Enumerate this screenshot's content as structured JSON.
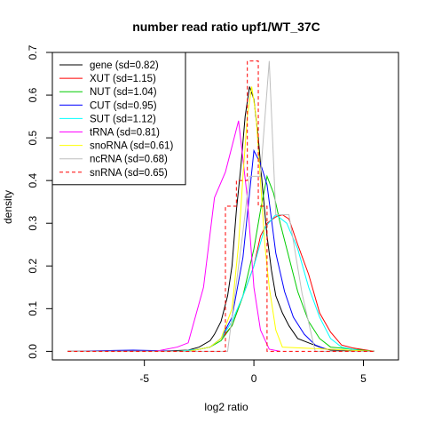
{
  "chart_data": {
    "type": "line",
    "title": "number read ratio upf1/WT_37C",
    "xlabel": "log2 ratio",
    "ylabel": "density",
    "xlim": [
      -9.2,
      6.6
    ],
    "ylim": [
      -0.02,
      0.7
    ],
    "xticks": [
      -5,
      0,
      5
    ],
    "yticks": [
      0.0,
      0.1,
      0.2,
      0.3,
      0.4,
      0.5,
      0.6,
      0.7
    ],
    "grid": false,
    "legend_position": "top-left",
    "series": [
      {
        "name": "gene (sd=0.82)",
        "color": "#000000",
        "dash": false,
        "x": [
          -8.5,
          -6.0,
          -4.5,
          -3.0,
          -2.5,
          -2.0,
          -1.8,
          -1.5,
          -1.2,
          -1.0,
          -0.8,
          -0.6,
          -0.4,
          -0.2,
          0.0,
          0.2,
          0.4,
          0.6,
          0.8,
          1.0,
          1.3,
          1.6,
          2.0,
          2.5,
          3.0,
          3.5,
          5.5
        ],
        "y": [
          0.0,
          0.0,
          0.0,
          0.003,
          0.01,
          0.025,
          0.04,
          0.07,
          0.13,
          0.2,
          0.33,
          0.43,
          0.55,
          0.62,
          0.59,
          0.5,
          0.38,
          0.27,
          0.19,
          0.13,
          0.09,
          0.06,
          0.03,
          0.02,
          0.01,
          0.003,
          0.0
        ]
      },
      {
        "name": "XUT (sd=1.15)",
        "color": "#ff0000",
        "dash": false,
        "x": [
          -8.5,
          -3.5,
          -2.5,
          -2.0,
          -1.5,
          -1.0,
          -0.5,
          0.0,
          0.3,
          0.6,
          1.0,
          1.3,
          1.6,
          2.0,
          2.5,
          3.0,
          3.5,
          4.0,
          4.5,
          5.5
        ],
        "y": [
          0.0,
          0.0,
          0.005,
          0.01,
          0.03,
          0.06,
          0.13,
          0.2,
          0.27,
          0.3,
          0.315,
          0.32,
          0.31,
          0.25,
          0.18,
          0.09,
          0.045,
          0.015,
          0.008,
          0.0
        ]
      },
      {
        "name": "NUT (sd=1.04)",
        "color": "#00cc00",
        "dash": false,
        "x": [
          -8.5,
          -3.0,
          -2.0,
          -1.5,
          -1.0,
          -0.5,
          0.0,
          0.3,
          0.6,
          0.9,
          1.2,
          1.5,
          2.0,
          2.5,
          3.0,
          3.5,
          5.5
        ],
        "y": [
          0.0,
          0.0,
          0.01,
          0.025,
          0.06,
          0.13,
          0.24,
          0.33,
          0.41,
          0.37,
          0.3,
          0.24,
          0.14,
          0.07,
          0.03,
          0.01,
          0.0
        ]
      },
      {
        "name": "CUT (sd=0.95)",
        "color": "#0000ff",
        "dash": false,
        "x": [
          -8.5,
          -5.5,
          -3.0,
          -2.0,
          -1.5,
          -1.0,
          -0.5,
          -0.2,
          0.0,
          0.3,
          0.6,
          1.0,
          1.4,
          1.8,
          2.3,
          2.8,
          3.3,
          5.5
        ],
        "y": [
          0.0,
          0.003,
          0.0,
          0.01,
          0.03,
          0.08,
          0.22,
          0.37,
          0.47,
          0.44,
          0.39,
          0.23,
          0.14,
          0.08,
          0.04,
          0.015,
          0.005,
          0.0
        ]
      },
      {
        "name": "SUT (sd=1.12)",
        "color": "#00ffff",
        "dash": false,
        "x": [
          -8.5,
          -3.5,
          -2.5,
          -2.0,
          -1.5,
          -1.0,
          -0.5,
          0.0,
          0.5,
          1.0,
          1.5,
          2.0,
          2.5,
          3.0,
          3.5,
          4.0,
          5.0
        ],
        "y": [
          0.0,
          0.0,
          0.005,
          0.01,
          0.03,
          0.07,
          0.13,
          0.2,
          0.29,
          0.32,
          0.3,
          0.24,
          0.15,
          0.08,
          0.03,
          0.01,
          0.0
        ]
      },
      {
        "name": "tRNA (sd=0.81)",
        "color": "#ff00ff",
        "dash": false,
        "x": [
          -8.5,
          -5.0,
          -4.5,
          -3.5,
          -3.0,
          -2.3,
          -1.8,
          -1.3,
          -0.7,
          -0.3,
          0.0,
          0.3,
          0.7,
          1.2
        ],
        "y": [
          0.0,
          0.0,
          0.0,
          0.01,
          0.02,
          0.15,
          0.36,
          0.42,
          0.54,
          0.36,
          0.15,
          0.05,
          0.005,
          0.0
        ]
      },
      {
        "name": "snoRNA (sd=0.61)",
        "color": "#ffff00",
        "dash": false,
        "x": [
          -8.5,
          -3.0,
          -2.0,
          -1.5,
          -1.0,
          -0.7,
          -0.5,
          -0.3,
          -0.1,
          0.1,
          0.3,
          0.5,
          0.7,
          1.0,
          1.3,
          5.5
        ],
        "y": [
          0.0,
          0.0,
          0.01,
          0.03,
          0.1,
          0.25,
          0.41,
          0.55,
          0.62,
          0.55,
          0.4,
          0.25,
          0.15,
          0.05,
          0.01,
          0.0
        ]
      },
      {
        "name": "ncRNA (sd=0.68)",
        "color": "#bebebe",
        "dash": false,
        "x": [
          -8.5,
          -1.2,
          -0.5,
          -0.2,
          0.3,
          0.7,
          1.0,
          1.6,
          2.2,
          2.8,
          5.5
        ],
        "y": [
          0.0,
          0.0,
          0.28,
          0.41,
          0.41,
          0.68,
          0.32,
          0.32,
          0.135,
          0.0,
          0.0
        ]
      },
      {
        "name": "snRNA (sd=0.65)",
        "color": "#ff0000",
        "dash": true,
        "x": [
          -8.5,
          -1.3,
          -1.3,
          -0.8,
          -0.8,
          -0.3,
          -0.3,
          0.2,
          0.2,
          0.6,
          0.6,
          5.5
        ],
        "y": [
          0.0,
          0.0,
          0.34,
          0.34,
          0.4,
          0.4,
          0.68,
          0.68,
          0.34,
          0.34,
          0.0,
          0.0
        ]
      }
    ]
  }
}
